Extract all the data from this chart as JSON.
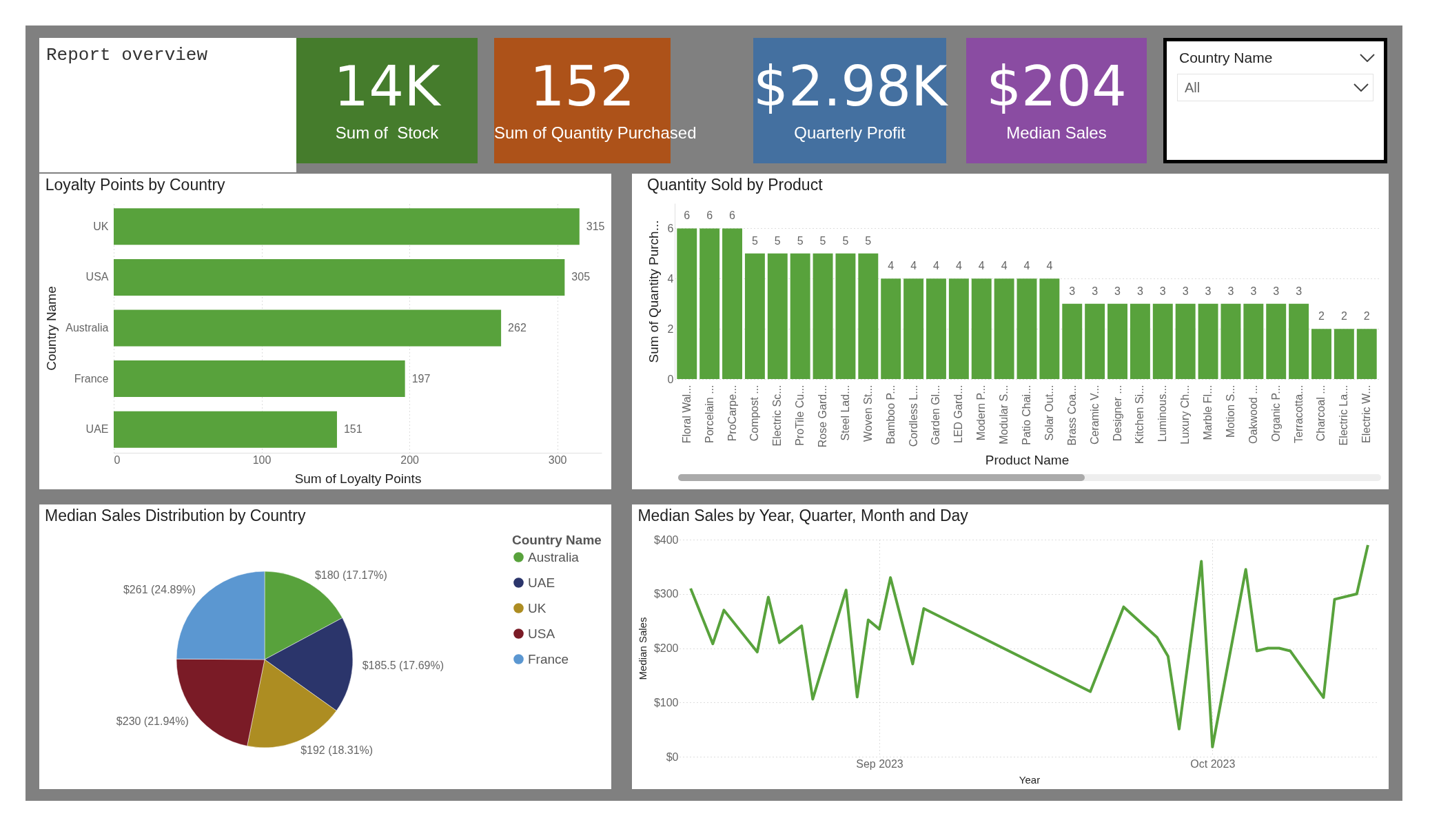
{
  "chart_data": [
    {
      "type": "other",
      "title": "Report overview"
    },
    {
      "type": "other",
      "categories": [
        "Sum of  Stock",
        "Sum of Quantity Purchased",
        "Quarterly Profit",
        "Median Sales"
      ],
      "value_labels": [
        "14K",
        "152",
        "$2.98K",
        "$204"
      ],
      "colors": [
        "#457c2c",
        "#ad5219",
        "#4470a0",
        "#8a4ca2"
      ]
    },
    {
      "type": "other",
      "title": "Country Name",
      "annotations": [
        "All"
      ]
    },
    {
      "type": "bar",
      "orientation": "horizontal",
      "title": "Loyalty Points by Country",
      "xlabel": "Sum of Loyalty Points",
      "ylabel": "Country Name",
      "categories": [
        "UK",
        "USA",
        "Australia",
        "France",
        "UAE"
      ],
      "values": [
        315,
        305,
        262,
        197,
        151
      ],
      "color": "#58a23c",
      "xlim": [
        0,
        330
      ],
      "xticks": [
        0,
        100,
        200,
        300
      ],
      "grid": "x",
      "data_labels": true
    },
    {
      "type": "bar",
      "title": "Quantity Sold by Product",
      "xlabel": "Product Name",
      "ylabel": "Sum of Quantity Purch...",
      "categories": [
        "Floral Wal...",
        "Porcelain ...",
        "ProCarpe...",
        "Compost ...",
        "Electric Sc...",
        "ProTile Cu...",
        "Rose Gard...",
        "Steel Lad...",
        "Woven St...",
        "Bamboo P...",
        "Cordless L...",
        "Garden Gl...",
        "LED Gard...",
        "Modern P...",
        "Modular S...",
        "Patio Chai...",
        "Solar Out...",
        "Brass Coa...",
        "Ceramic V...",
        "Designer ...",
        "Kitchen Si...",
        "Luminous...",
        "Luxury Ch...",
        "Marble Fl...",
        "Motion S...",
        "Oakwood ...",
        "Organic P...",
        "Terracotta...",
        "Charcoal ...",
        "Electric La...",
        "Electric W..."
      ],
      "values": [
        6,
        6,
        6,
        5,
        5,
        5,
        5,
        5,
        5,
        4,
        4,
        4,
        4,
        4,
        4,
        4,
        4,
        3,
        3,
        3,
        3,
        3,
        3,
        3,
        3,
        3,
        3,
        3,
        2,
        2,
        2
      ],
      "color": "#58a23c",
      "ylim": [
        0,
        7
      ],
      "yticks": [
        0,
        2,
        4,
        6
      ],
      "grid": "y",
      "data_labels": true
    },
    {
      "type": "pie",
      "title": "Median Sales Distribution by Country",
      "legend_title": "Country Name",
      "legend": "right",
      "categories": [
        "Australia",
        "UAE",
        "UK",
        "USA",
        "France"
      ],
      "values": [
        180,
        185.5,
        192,
        230,
        261
      ],
      "colors": [
        "#58a23c",
        "#2b356b",
        "#ad8d22",
        "#7a1b26",
        "#5b97d1"
      ],
      "value_labels": [
        "$180 (17.17%)",
        "$185.5 (17.69%)",
        "$192 (18.31%)",
        "$230 (21.94%)",
        "$261 (24.89%)"
      ]
    },
    {
      "type": "line",
      "title": "Median Sales by Year, Quarter, Month and Day",
      "xlabel": "Year",
      "ylabel": "Median Sales",
      "color": "#58a23c",
      "grid": true,
      "marker": "none",
      "line_style": "solid",
      "x": [
        "2023-08-15",
        "2023-08-17",
        "2023-08-18",
        "2023-08-21",
        "2023-08-22",
        "2023-08-23",
        "2023-08-25",
        "2023-08-26",
        "2023-08-29",
        "2023-08-30",
        "2023-08-31",
        "2023-09-01",
        "2023-09-02",
        "2023-09-04",
        "2023-09-05",
        "2023-09-20",
        "2023-09-23",
        "2023-09-26",
        "2023-09-27",
        "2023-09-28",
        "2023-09-30",
        "2023-10-01",
        "2023-10-04",
        "2023-10-05",
        "2023-10-06",
        "2023-10-07",
        "2023-10-08",
        "2023-10-11",
        "2023-10-12",
        "2023-10-14",
        "2023-10-15"
      ],
      "values": [
        310,
        208,
        270,
        193,
        294,
        210,
        241,
        106,
        307,
        110,
        252,
        235,
        330,
        171,
        273,
        120,
        276,
        220,
        185,
        51,
        360,
        18,
        345,
        195,
        200,
        200,
        195,
        109,
        290,
        300,
        390
      ],
      "xlim": [
        "2023-08-14",
        "2023-10-16"
      ],
      "xticks": [
        {
          "value": "2023-09",
          "label": "Sep 2023"
        },
        {
          "value": "2023-10",
          "label": "Oct 2023"
        }
      ],
      "ylim": [
        0,
        400
      ],
      "yticks": [
        {
          "value": 0,
          "label": "$0"
        },
        {
          "value": 100,
          "label": "$100"
        },
        {
          "value": 200,
          "label": "$200"
        },
        {
          "value": 300,
          "label": "$300"
        },
        {
          "value": 400,
          "label": "$400"
        }
      ]
    }
  ]
}
